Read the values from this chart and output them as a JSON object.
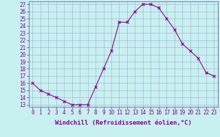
{
  "x": [
    0,
    1,
    2,
    3,
    4,
    5,
    6,
    7,
    8,
    9,
    10,
    11,
    12,
    13,
    14,
    15,
    16,
    17,
    18,
    19,
    20,
    21,
    22,
    23
  ],
  "y": [
    16,
    15,
    14.5,
    14,
    13.5,
    13,
    13,
    13,
    15.5,
    18,
    20.5,
    24.5,
    24.5,
    26,
    27,
    27,
    26.5,
    25,
    23.5,
    21.5,
    20.5,
    19.5,
    17.5,
    17
  ],
  "line_color": "#880088",
  "marker_color": "#880088",
  "bg_color": "#c8f0f0",
  "grid_color": "#a0a8d0",
  "xlabel": "Windchill (Refroidissement éolien,°C)",
  "xlabel_fontsize": 6.5,
  "tick_fontsize": 5.5,
  "ylim": [
    13,
    27
  ],
  "xlim": [
    0,
    23
  ],
  "xtick_labels": [
    "0",
    "1",
    "2",
    "3",
    "4",
    "5",
    "6",
    "7",
    "8",
    "9",
    "10",
    "11",
    "12",
    "13",
    "14",
    "15",
    "16",
    "17",
    "18",
    "19",
    "20",
    "21",
    "22",
    "23"
  ]
}
